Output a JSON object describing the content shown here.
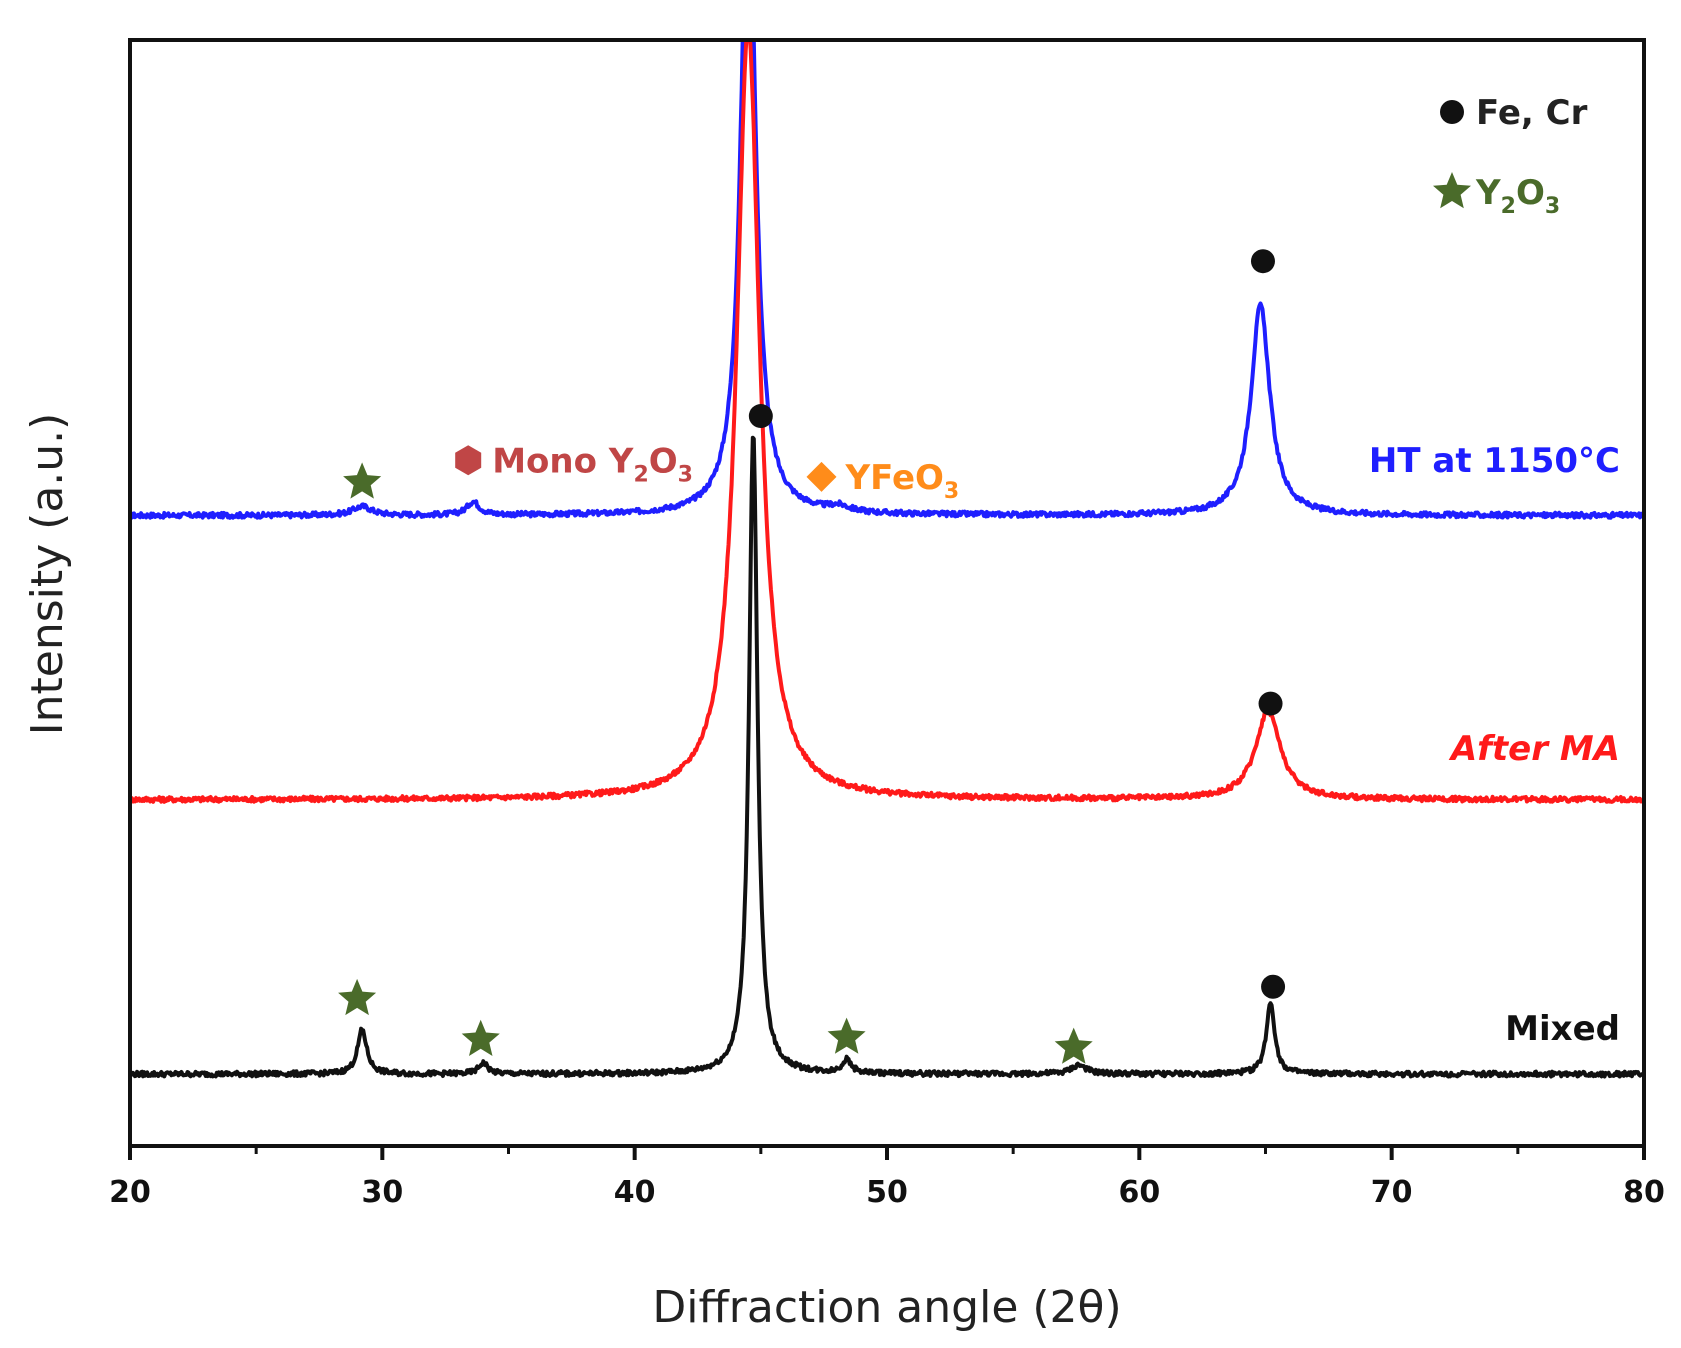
{
  "chart_data": {
    "type": "line",
    "title": "",
    "xlabel": "Diffraction angle (2θ)",
    "ylabel": "Intensity (a.u.)",
    "xlim": [
      20,
      80
    ],
    "xticks": [
      20,
      30,
      40,
      50,
      60,
      70,
      80
    ],
    "xtick_labels": [
      "20",
      "30",
      "40",
      "50",
      "60",
      "70",
      "80"
    ],
    "ylim": [
      0,
      100
    ],
    "y_ticks_shown": false,
    "series": [
      {
        "name": "HT at 1150°C",
        "color": "#1f1fff",
        "baseline": 57,
        "peaks": [
          [
            29.2,
            0.8,
            0.45
          ],
          [
            33.6,
            1.2,
            0.3
          ],
          [
            44.5,
            60,
            0.35
          ],
          [
            48.1,
            0.5,
            0.5
          ],
          [
            64.8,
            19,
            0.45
          ]
        ]
      },
      {
        "name": "After MA",
        "color": "#ff1a1a",
        "baseline": 31.3,
        "peaks": [
          [
            44.5,
            70,
            0.55
          ],
          [
            65.1,
            8,
            0.6
          ]
        ]
      },
      {
        "name": "Mixed",
        "color": "#111111",
        "baseline": 6.5,
        "peaks": [
          [
            29.2,
            4,
            0.22
          ],
          [
            34.0,
            1,
            0.22
          ],
          [
            44.7,
            58,
            0.2
          ],
          [
            48.4,
            1.2,
            0.22
          ],
          [
            57.6,
            0.8,
            0.35
          ],
          [
            65.2,
            6.5,
            0.2
          ]
        ]
      }
    ],
    "legend": [
      {
        "symbol": "circle",
        "color": "#111111",
        "label": "Fe, Cr"
      },
      {
        "symbol": "star",
        "color": "#4a6b2a",
        "label": "Y",
        "sub1": "2",
        "mid": "O",
        "sub2": "3"
      }
    ],
    "annotations": [
      {
        "symbol": "hexagon",
        "color": "#c04646",
        "label": "Mono Y",
        "sub1": "2",
        "mid": "O",
        "sub2": "3",
        "x": 33.8,
        "y": 62
      },
      {
        "symbol": "diamond",
        "color": "#ff8c1a",
        "label": "YFeO",
        "sub1": "3",
        "x": 47.8,
        "y": 60.5
      }
    ],
    "markers": [
      {
        "symbol": "circle",
        "color": "#111111",
        "x": 64.9,
        "y": 80
      },
      {
        "symbol": "star",
        "color": "#4a6b2a",
        "x": 29.2,
        "y": 60
      },
      {
        "symbol": "circle",
        "color": "#111111",
        "x": 45.0,
        "y": 66
      },
      {
        "symbol": "circle",
        "color": "#111111",
        "x": 65.2,
        "y": 40
      },
      {
        "symbol": "circle",
        "color": "#111111",
        "x": 65.3,
        "y": 14.4
      },
      {
        "symbol": "star",
        "color": "#4a6b2a",
        "x": 29.0,
        "y": 13.3
      },
      {
        "symbol": "star",
        "color": "#4a6b2a",
        "x": 33.9,
        "y": 9.6
      },
      {
        "symbol": "star",
        "color": "#4a6b2a",
        "x": 48.4,
        "y": 9.8
      },
      {
        "symbol": "star",
        "color": "#4a6b2a",
        "x": 57.4,
        "y": 8.9
      }
    ]
  }
}
